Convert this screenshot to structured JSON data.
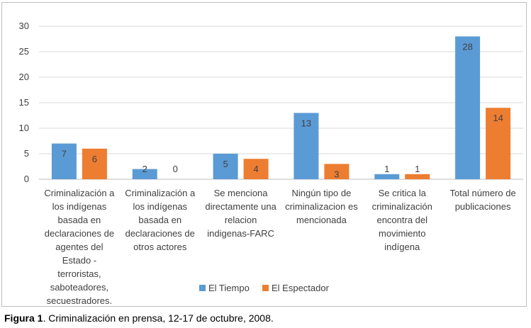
{
  "caption": {
    "label": "Figura 1",
    "text": ". Criminalización en prensa, 12-17 de octubre, 2008."
  },
  "chart_data": {
    "type": "bar",
    "categories": [
      [
        "Criminalización a",
        "los indígenas",
        "basada en",
        "declaraciones de",
        "agentes del",
        "Estado -",
        "terroristas,",
        "saboteadores,",
        "secuestradores."
      ],
      [
        "Criminalización a",
        "los indígenas",
        "basada en",
        "declaraciones de",
        "otros actores"
      ],
      [
        "Se menciona",
        "directamente una",
        "relacion",
        "indigenas-FARC"
      ],
      [
        "Ningún tipo de",
        "criminalizacion es",
        "mencionada"
      ],
      [
        "Se critica la",
        "criminalización",
        "encontra del",
        "movimiento",
        "indígena"
      ],
      [
        "Total número de",
        "publicaciones"
      ]
    ],
    "series": [
      {
        "name": "El Tiempo",
        "color": "#5b9bd5",
        "values": [
          7,
          2,
          5,
          13,
          1,
          28
        ]
      },
      {
        "name": "El Espectador",
        "color": "#ed7d31",
        "values": [
          6,
          0,
          4,
          3,
          1,
          14
        ]
      }
    ],
    "ylim": [
      0,
      30
    ],
    "yticks": [
      0,
      5,
      10,
      15,
      20,
      25,
      30
    ],
    "grid": true,
    "legend_position": "bottom",
    "data_labels": true
  }
}
